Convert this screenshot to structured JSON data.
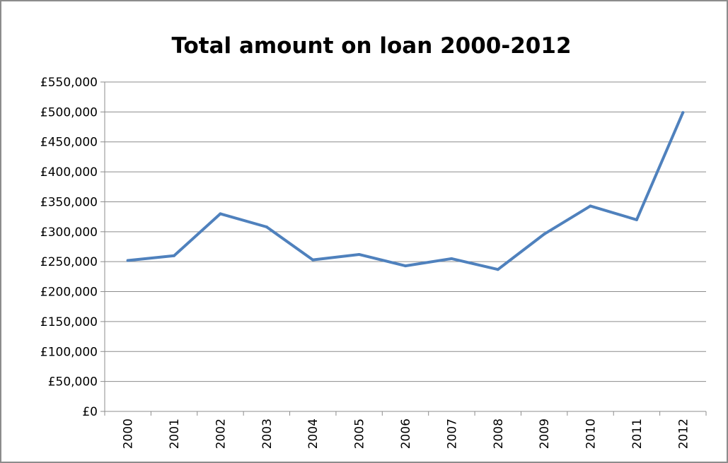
{
  "chart_data": {
    "type": "line",
    "title": "Total amount on loan 2000-2012",
    "xlabel": "",
    "ylabel": "",
    "categories": [
      "2000",
      "2001",
      "2002",
      "2003",
      "2004",
      "2005",
      "2006",
      "2007",
      "2008",
      "2009",
      "2010",
      "2011",
      "2012"
    ],
    "series": [
      {
        "values": [
          252000,
          260000,
          330000,
          308000,
          253000,
          262000,
          243000,
          255000,
          237000,
          296000,
          343000,
          320000,
          499000
        ],
        "color": "#4f81bd"
      }
    ],
    "ylim": [
      0,
      550000
    ],
    "yticks": [
      0,
      50000,
      100000,
      150000,
      200000,
      250000,
      300000,
      350000,
      400000,
      450000,
      500000,
      550000
    ],
    "ytick_labels": [
      "£0",
      "£50,000",
      "£100,000",
      "£150,000",
      "£200,000",
      "£250,000",
      "£300,000",
      "£350,000",
      "£400,000",
      "£450,000",
      "£500,000",
      "£550,000"
    ],
    "grid": true,
    "legend": "none"
  }
}
